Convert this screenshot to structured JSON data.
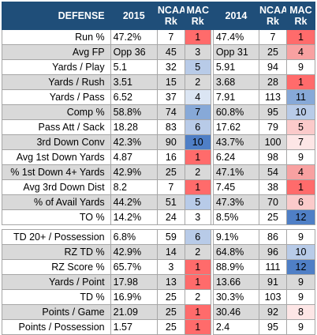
{
  "header": {
    "label": "DEFENSE",
    "year_a": "2015",
    "ncaa_rk": "NCAA\nRk",
    "mac_rk": "MAC\nRk",
    "year_b": "2014"
  },
  "colors": {
    "red_strong": "#ff6b6b",
    "red_mid": "#f8a1a1",
    "red_light": "#fbcaca",
    "red_pale": "#fde6e6",
    "blue_strong": "#4f7fc6",
    "blue_mid": "#87a9d8",
    "blue_light": "#b8cbe8",
    "blue_pale": "#dbe5f3",
    "neutral": ""
  },
  "group1": [
    {
      "label": "Run %",
      "v15": "47.2%",
      "n15": "7",
      "m15": "1",
      "v14": "47.4%",
      "n14": "7",
      "m14": "1"
    },
    {
      "label": "Avg FP",
      "v15": "Opp 36",
      "n15": "45",
      "m15": "3",
      "v14": "Opp 31",
      "n14": "25",
      "m14": "4"
    },
    {
      "label": "Yards / Play",
      "v15": "5.1",
      "n15": "32",
      "m15": "5",
      "v14": "5.91",
      "n14": "94",
      "m14": "9"
    },
    {
      "label": "Yards / Rush",
      "v15": "3.51",
      "n15": "15",
      "m15": "2",
      "v14": "3.68",
      "n14": "28",
      "m14": "1"
    },
    {
      "label": "Yards / Pass",
      "v15": "6.52",
      "n15": "37",
      "m15": "4",
      "v14": "7.91",
      "n14": "113",
      "m14": "11"
    },
    {
      "label": "Comp %",
      "v15": "58.8%",
      "n15": "74",
      "m15": "7",
      "v14": "60.8%",
      "n14": "95",
      "m14": "10"
    },
    {
      "label": "Pass Att / Sack",
      "v15": "18.28",
      "n15": "83",
      "m15": "6",
      "v14": "17.62",
      "n14": "79",
      "m14": "5"
    },
    {
      "label": "3rd Down Conv",
      "v15": "42.3%",
      "n15": "90",
      "m15": "10",
      "v14": "43.7%",
      "n14": "100",
      "m14": "7"
    },
    {
      "label": "Avg 1st Down Yards",
      "v15": "4.87",
      "n15": "16",
      "m15": "1",
      "v14": "6.24",
      "n14": "98",
      "m14": "9"
    },
    {
      "label": "% 1st Down 4+ Yards",
      "v15": "42.9%",
      "n15": "25",
      "m15": "2",
      "v14": "47.1%",
      "n14": "54",
      "m14": "4"
    },
    {
      "label": "Avg 3rd Down Dist",
      "v15": "8.2",
      "n15": "7",
      "m15": "1",
      "v14": "7.45",
      "n14": "38",
      "m14": "1"
    },
    {
      "label": "% of Avail Yards",
      "v15": "44.2%",
      "n15": "51",
      "m15": "5",
      "v14": "47.3%",
      "n14": "70",
      "m14": "6"
    },
    {
      "label": "TO %",
      "v15": "14.2%",
      "n15": "24",
      "m15": "3",
      "v14": "8.5%",
      "n14": "25",
      "m14": "12"
    }
  ],
  "group2": [
    {
      "label": "TD 20+ / Possession",
      "v15": "6.8%",
      "n15": "59",
      "m15": "6",
      "v14": "9.1%",
      "n14": "86",
      "m14": "9"
    },
    {
      "label": "RZ TD %",
      "v15": "42.9%",
      "n15": "14",
      "m15": "2",
      "v14": "64.8%",
      "n14": "96",
      "m14": "10"
    },
    {
      "label": "RZ Score %",
      "v15": "65.7%",
      "n15": "3",
      "m15": "1",
      "v14": "88.9%",
      "n14": "111",
      "m14": "12"
    },
    {
      "label": "Yards / Point",
      "v15": "17.98",
      "n15": "13",
      "m15": "1",
      "v14": "13.66",
      "n14": "91",
      "m14": "9"
    },
    {
      "label": "TD %",
      "v15": "16.9%",
      "n15": "25",
      "m15": "2",
      "v14": "30.3%",
      "n14": "103",
      "m14": "9"
    },
    {
      "label": "Points / Game",
      "v15": "21.09",
      "n15": "25",
      "m15": "1",
      "v14": "30.46",
      "n14": "92",
      "m14": "8"
    },
    {
      "label": "Points / Possession",
      "v15": "1.57",
      "n15": "25",
      "m15": "1",
      "v14": "2.4",
      "n14": "95",
      "m14": "9"
    }
  ]
}
